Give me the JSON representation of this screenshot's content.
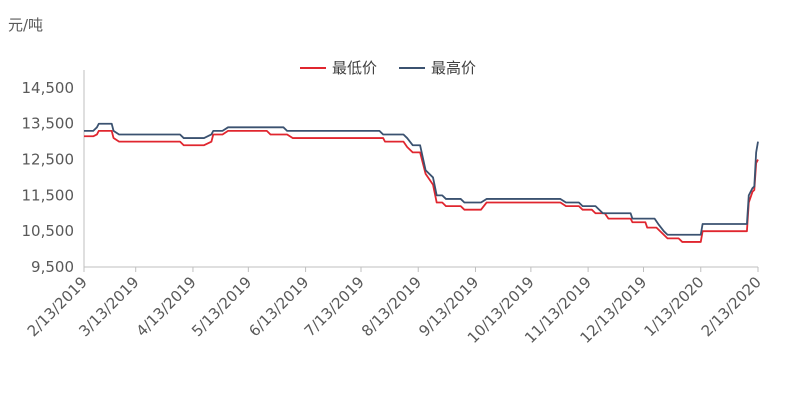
{
  "chart_data": {
    "type": "line",
    "ylabel": "元/吨",
    "ylim": [
      9500,
      15000
    ],
    "yticks": [
      9500,
      10500,
      11500,
      12500,
      13500,
      14500
    ],
    "ytick_labels": [
      "9,500",
      "10,500",
      "11,500",
      "12,500",
      "13,500",
      "14,500"
    ],
    "x_tick_labels": [
      "2/13/2019",
      "3/13/2019",
      "4/13/2019",
      "5/13/2019",
      "6/13/2019",
      "7/13/2019",
      "8/13/2019",
      "9/13/2019",
      "10/13/2019",
      "11/13/2019",
      "12/13/2019",
      "1/13/2020",
      "2/13/2020"
    ],
    "x_tick_dates": [
      "2019-02-13",
      "2019-03-13",
      "2019-04-13",
      "2019-05-13",
      "2019-06-13",
      "2019-07-13",
      "2019-08-13",
      "2019-09-13",
      "2019-10-13",
      "2019-11-13",
      "2019-12-13",
      "2020-01-13",
      "2020-02-13"
    ],
    "xlim": [
      "2019-02-13",
      "2020-02-13"
    ],
    "legend_position": "top-center",
    "grid": false,
    "series": [
      {
        "name": "最低价",
        "color": "#e0262f",
        "points": [
          [
            "2019-02-13",
            13150
          ],
          [
            "2019-02-18",
            13150
          ],
          [
            "2019-02-20",
            13200
          ],
          [
            "2019-02-21",
            13300
          ],
          [
            "2019-02-28",
            13300
          ],
          [
            "2019-03-01",
            13100
          ],
          [
            "2019-03-04",
            13000
          ],
          [
            "2019-04-06",
            13000
          ],
          [
            "2019-04-08",
            12900
          ],
          [
            "2019-04-19",
            12900
          ],
          [
            "2019-04-23",
            13000
          ],
          [
            "2019-04-24",
            13200
          ],
          [
            "2019-04-29",
            13200
          ],
          [
            "2019-05-02",
            13300
          ],
          [
            "2019-05-23",
            13300
          ],
          [
            "2019-05-25",
            13200
          ],
          [
            "2019-06-03",
            13200
          ],
          [
            "2019-06-06",
            13100
          ],
          [
            "2019-07-25",
            13100
          ],
          [
            "2019-07-26",
            13000
          ],
          [
            "2019-08-05",
            13000
          ],
          [
            "2019-08-07",
            12850
          ],
          [
            "2019-08-10",
            12700
          ],
          [
            "2019-08-14",
            12700
          ],
          [
            "2019-08-17",
            12100
          ],
          [
            "2019-08-21",
            11800
          ],
          [
            "2019-08-23",
            11300
          ],
          [
            "2019-08-26",
            11300
          ],
          [
            "2019-08-28",
            11200
          ],
          [
            "2019-09-05",
            11200
          ],
          [
            "2019-09-07",
            11100
          ],
          [
            "2019-09-16",
            11100
          ],
          [
            "2019-09-19",
            11300
          ],
          [
            "2019-10-29",
            11300
          ],
          [
            "2019-11-01",
            11200
          ],
          [
            "2019-11-08",
            11200
          ],
          [
            "2019-11-10",
            11100
          ],
          [
            "2019-11-15",
            11100
          ],
          [
            "2019-11-17",
            11000
          ],
          [
            "2019-11-22",
            11000
          ],
          [
            "2019-11-24",
            10850
          ],
          [
            "2019-12-06",
            10850
          ],
          [
            "2019-12-07",
            10750
          ],
          [
            "2019-12-14",
            10750
          ],
          [
            "2019-12-15",
            10600
          ],
          [
            "2019-12-20",
            10600
          ],
          [
            "2019-12-23",
            10450
          ],
          [
            "2019-12-26",
            10300
          ],
          [
            "2020-01-01",
            10300
          ],
          [
            "2020-01-03",
            10200
          ],
          [
            "2020-01-13",
            10200
          ],
          [
            "2020-01-14",
            10500
          ],
          [
            "2020-02-07",
            10500
          ],
          [
            "2020-02-08",
            11300
          ],
          [
            "2020-02-10",
            11600
          ],
          [
            "2020-02-11",
            11650
          ],
          [
            "2020-02-12",
            12400
          ],
          [
            "2020-02-13",
            12500
          ]
        ]
      },
      {
        "name": "最高价",
        "color": "#3b5270",
        "points": [
          [
            "2019-02-13",
            13300
          ],
          [
            "2019-02-18",
            13300
          ],
          [
            "2019-02-20",
            13400
          ],
          [
            "2019-02-21",
            13500
          ],
          [
            "2019-02-28",
            13500
          ],
          [
            "2019-03-01",
            13300
          ],
          [
            "2019-03-04",
            13200
          ],
          [
            "2019-04-06",
            13200
          ],
          [
            "2019-04-08",
            13100
          ],
          [
            "2019-04-19",
            13100
          ],
          [
            "2019-04-23",
            13200
          ],
          [
            "2019-04-24",
            13300
          ],
          [
            "2019-04-29",
            13300
          ],
          [
            "2019-05-02",
            13400
          ],
          [
            "2019-06-01",
            13400
          ],
          [
            "2019-06-03",
            13300
          ],
          [
            "2019-07-23",
            13300
          ],
          [
            "2019-07-25",
            13200
          ],
          [
            "2019-08-05",
            13200
          ],
          [
            "2019-08-07",
            13100
          ],
          [
            "2019-08-10",
            12900
          ],
          [
            "2019-08-14",
            12900
          ],
          [
            "2019-08-17",
            12200
          ],
          [
            "2019-08-21",
            12000
          ],
          [
            "2019-08-23",
            11500
          ],
          [
            "2019-08-26",
            11500
          ],
          [
            "2019-08-28",
            11400
          ],
          [
            "2019-09-05",
            11400
          ],
          [
            "2019-09-07",
            11300
          ],
          [
            "2019-09-16",
            11300
          ],
          [
            "2019-09-19",
            11400
          ],
          [
            "2019-10-29",
            11400
          ],
          [
            "2019-11-01",
            11300
          ],
          [
            "2019-11-08",
            11300
          ],
          [
            "2019-11-10",
            11200
          ],
          [
            "2019-11-17",
            11200
          ],
          [
            "2019-11-21",
            11000
          ],
          [
            "2019-12-06",
            11000
          ],
          [
            "2019-12-07",
            10850
          ],
          [
            "2019-12-19",
            10850
          ],
          [
            "2019-12-21",
            10700
          ],
          [
            "2019-12-24",
            10500
          ],
          [
            "2019-12-26",
            10400
          ],
          [
            "2020-01-13",
            10400
          ],
          [
            "2020-01-14",
            10700
          ],
          [
            "2020-02-07",
            10700
          ],
          [
            "2020-02-08",
            11500
          ],
          [
            "2020-02-10",
            11700
          ],
          [
            "2020-02-11",
            11750
          ],
          [
            "2020-02-12",
            12700
          ],
          [
            "2020-02-13",
            13000
          ]
        ]
      }
    ]
  }
}
